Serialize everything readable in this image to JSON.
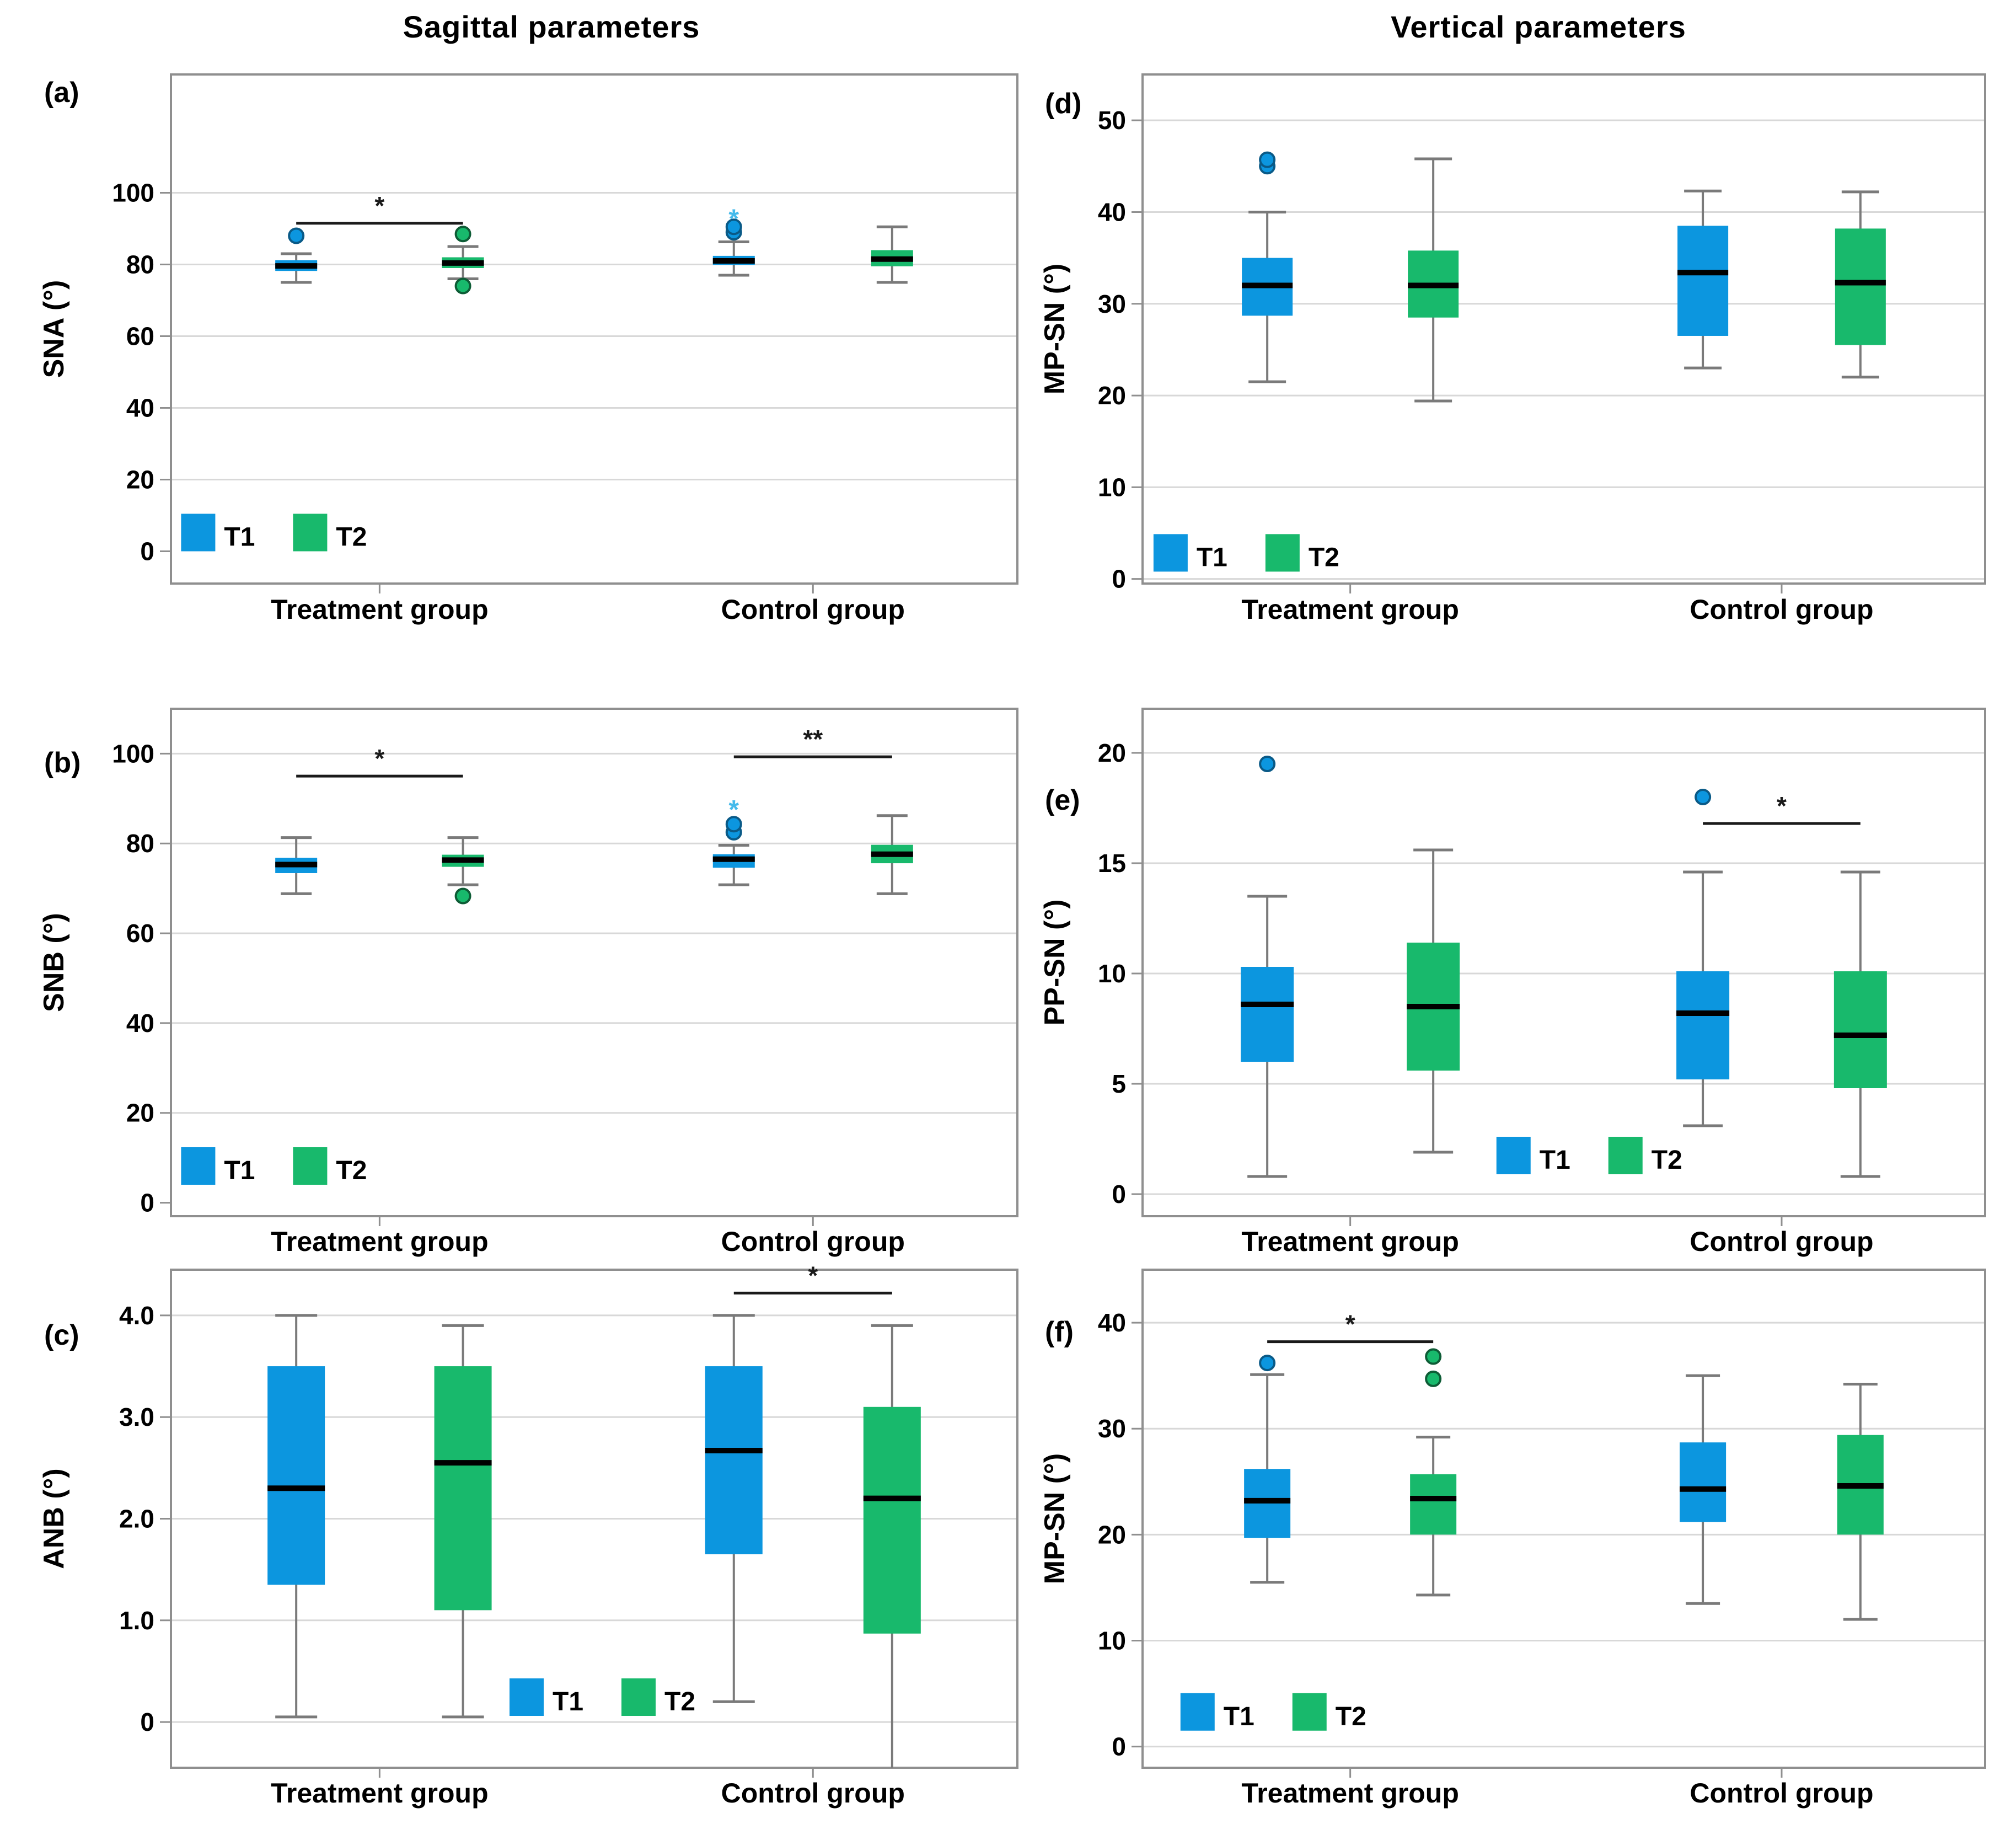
{
  "figure": {
    "column_titles": [
      "Sagittal parameters",
      "Vertical parameters"
    ],
    "groups": [
      "Treatment group",
      "Control group"
    ],
    "legend": {
      "t1_label": "T1",
      "t2_label": "T2"
    },
    "colors": {
      "t1_fill": "#0C96DF",
      "t2_fill": "#18B96C",
      "t1_outline": "#0A5A87",
      "t2_outline": "#0E5C36",
      "t1_extreme": "#45BAEB",
      "median": "#000000",
      "whisker": "#7A7A7A",
      "grid": "#D8D8D8",
      "frame": "#8F8F8F",
      "text": "#000000",
      "sig": "#1A1A1A"
    }
  },
  "chart_data": [
    {
      "id": "a",
      "type": "boxplot",
      "panel_label": "(a)",
      "ylabel": "SNA (°)",
      "yticks": [
        0,
        20,
        40,
        60,
        80,
        100
      ],
      "ytick_labels": [
        "0",
        "20",
        "40",
        "60",
        "80",
        "100"
      ],
      "ylim": [
        -9,
        133
      ],
      "grid_zero": false,
      "groups": [
        "Treatment group",
        "Control group"
      ],
      "boxes": [
        {
          "group": "Treatment group",
          "series": "T1",
          "whisker_low": 75,
          "q1": 78.2,
          "median": 79.6,
          "q3": 81.2,
          "whisker_high": 83,
          "outliers": [
            88
          ],
          "extremes": []
        },
        {
          "group": "Treatment group",
          "series": "T2",
          "whisker_low": 76,
          "q1": 79.0,
          "median": 80.4,
          "q3": 82.0,
          "whisker_high": 85,
          "outliers": [
            88.5,
            74
          ],
          "extremes": []
        },
        {
          "group": "Control group",
          "series": "T1",
          "whisker_low": 77,
          "q1": 79.9,
          "median": 81.0,
          "q3": 82.4,
          "whisker_high": 86.3,
          "outliers": [
            89,
            90.5
          ],
          "extremes": [
            92.5
          ]
        },
        {
          "group": "Control group",
          "series": "T2",
          "whisker_low": 75,
          "q1": 79.5,
          "median": 81.5,
          "q3": 84.0,
          "whisker_high": 90.5,
          "outliers": [],
          "extremes": []
        }
      ],
      "significance": [
        {
          "pair": [
            0,
            1
          ],
          "y": 91.5,
          "label": "*"
        }
      ],
      "legend_pos": {
        "x_frac": 0.012,
        "y_bottom": 0
      }
    },
    {
      "id": "b",
      "type": "boxplot",
      "panel_label": "(b)",
      "ylabel": "SNB (°)",
      "yticks": [
        0,
        20,
        40,
        60,
        80,
        100
      ],
      "ytick_labels": [
        "0",
        "20",
        "40",
        "60",
        "80",
        "100"
      ],
      "ylim": [
        -3,
        110
      ],
      "grid_zero": false,
      "groups": [
        "Treatment group",
        "Control group"
      ],
      "boxes": [
        {
          "group": "Treatment group",
          "series": "T1",
          "whisker_low": 68.8,
          "q1": 73.4,
          "median": 75.3,
          "q3": 76.8,
          "whisker_high": 81.3,
          "outliers": [],
          "extremes": []
        },
        {
          "group": "Treatment group",
          "series": "T2",
          "whisker_low": 70.8,
          "q1": 74.8,
          "median": 76.3,
          "q3": 77.5,
          "whisker_high": 81.3,
          "outliers": [
            68.3
          ],
          "extremes": []
        },
        {
          "group": "Control group",
          "series": "T1",
          "whisker_low": 70.8,
          "q1": 74.6,
          "median": 76.5,
          "q3": 77.6,
          "whisker_high": 79.6,
          "outliers": [
            82.5,
            84.3
          ],
          "extremes": [
            87.3
          ]
        },
        {
          "group": "Control group",
          "series": "T2",
          "whisker_low": 68.8,
          "q1": 75.6,
          "median": 77.6,
          "q3": 79.7,
          "whisker_high": 86.2,
          "outliers": [],
          "extremes": []
        }
      ],
      "significance": [
        {
          "pair": [
            0,
            1
          ],
          "y": 95,
          "label": "*"
        },
        {
          "pair": [
            2,
            3
          ],
          "y": 99.3,
          "label": "**"
        }
      ],
      "legend_pos": {
        "x_frac": 0.012,
        "y_bottom": 4
      }
    },
    {
      "id": "c",
      "type": "boxplot",
      "panel_label": "(c)",
      "ylabel": "ANB (°)",
      "yticks": [
        0,
        1,
        2,
        3,
        4
      ],
      "ytick_labels": [
        "0",
        "1.0",
        "2.0",
        "3.0",
        "4.0"
      ],
      "ylim": [
        -0.45,
        4.45
      ],
      "grid_zero": true,
      "groups": [
        "Treatment group",
        "Control group"
      ],
      "boxes": [
        {
          "group": "Treatment group",
          "series": "T1",
          "whisker_low": 0.05,
          "q1": 1.35,
          "median": 2.3,
          "q3": 3.5,
          "whisker_high": 4.0,
          "outliers": [],
          "extremes": []
        },
        {
          "group": "Treatment group",
          "series": "T2",
          "whisker_low": 0.05,
          "q1": 1.1,
          "median": 2.55,
          "q3": 3.5,
          "whisker_high": 3.9,
          "outliers": [],
          "extremes": []
        },
        {
          "group": "Control group",
          "series": "T1",
          "whisker_low": 0.2,
          "q1": 1.65,
          "median": 2.67,
          "q3": 3.5,
          "whisker_high": 4.0,
          "outliers": [],
          "extremes": []
        },
        {
          "group": "Control group",
          "series": "T2",
          "whisker_low": -0.6,
          "q1": 0.87,
          "median": 2.2,
          "q3": 3.1,
          "whisker_high": 3.9,
          "outliers": [],
          "extremes": []
        }
      ],
      "significance": [
        {
          "pair": [
            2,
            3
          ],
          "y": 4.22,
          "label": "*"
        }
      ],
      "legend_pos": {
        "x_frac": 0.4,
        "y_bottom": 0.06
      }
    },
    {
      "id": "d",
      "type": "boxplot",
      "panel_label": "(d)",
      "ylabel": "MP-SN (°)",
      "yticks": [
        0,
        10,
        20,
        30,
        40,
        50
      ],
      "ytick_labels": [
        "0",
        "10",
        "20",
        "30",
        "40",
        "50"
      ],
      "ylim": [
        -0.5,
        55
      ],
      "grid_zero": true,
      "groups": [
        "Treatment group",
        "Control group"
      ],
      "boxes": [
        {
          "group": "Treatment group",
          "series": "T1",
          "whisker_low": 21.5,
          "q1": 28.7,
          "median": 32.0,
          "q3": 35.0,
          "whisker_high": 40.0,
          "outliers": [
            45,
            45.7
          ],
          "extremes": []
        },
        {
          "group": "Treatment group",
          "series": "T2",
          "whisker_low": 19.4,
          "q1": 28.5,
          "median": 32.0,
          "q3": 35.8,
          "whisker_high": 45.8,
          "outliers": [],
          "extremes": []
        },
        {
          "group": "Control group",
          "series": "T1",
          "whisker_low": 23.0,
          "q1": 26.5,
          "median": 33.4,
          "q3": 38.5,
          "whisker_high": 42.3,
          "outliers": [],
          "extremes": []
        },
        {
          "group": "Control group",
          "series": "T2",
          "whisker_low": 22.0,
          "q1": 25.5,
          "median": 32.3,
          "q3": 38.2,
          "whisker_high": 42.2,
          "outliers": [],
          "extremes": []
        }
      ],
      "significance": [],
      "legend_pos": {
        "x_frac": 0.013,
        "y_bottom": 0.8
      }
    },
    {
      "id": "e",
      "type": "boxplot",
      "panel_label": "(e)",
      "ylabel": "PP-SN (°)",
      "yticks": [
        0,
        5,
        10,
        15,
        20
      ],
      "ytick_labels": [
        "0",
        "5",
        "10",
        "15",
        "20"
      ],
      "ylim": [
        -1,
        22
      ],
      "grid_zero": true,
      "groups": [
        "Treatment group",
        "Control group"
      ],
      "boxes": [
        {
          "group": "Treatment group",
          "series": "T1",
          "whisker_low": 0.8,
          "q1": 6.0,
          "median": 8.6,
          "q3": 10.3,
          "whisker_high": 13.5,
          "outliers": [
            19.5
          ],
          "extremes": []
        },
        {
          "group": "Treatment group",
          "series": "T2",
          "whisker_low": 1.9,
          "q1": 5.6,
          "median": 8.5,
          "q3": 11.4,
          "whisker_high": 15.6,
          "outliers": [],
          "extremes": []
        },
        {
          "group": "Control group",
          "series": "T1",
          "whisker_low": 3.1,
          "q1": 5.2,
          "median": 8.2,
          "q3": 10.1,
          "whisker_high": 14.6,
          "outliers": [
            18
          ],
          "extremes": []
        },
        {
          "group": "Control group",
          "series": "T2",
          "whisker_low": 0.8,
          "q1": 4.8,
          "median": 7.2,
          "q3": 10.1,
          "whisker_high": 14.6,
          "outliers": [],
          "extremes": []
        }
      ],
      "significance": [
        {
          "pair": [
            2,
            3
          ],
          "y": 16.8,
          "label": "*"
        }
      ],
      "legend_pos": {
        "x_frac": 0.42,
        "y_bottom": 0.9
      }
    },
    {
      "id": "f",
      "type": "boxplot",
      "panel_label": "(f)",
      "ylabel": "MP-SN (°)",
      "yticks": [
        0,
        10,
        20,
        30,
        40
      ],
      "ytick_labels": [
        "0",
        "10",
        "20",
        "30",
        "40"
      ],
      "ylim": [
        -2,
        45
      ],
      "grid_zero": true,
      "groups": [
        "Treatment group",
        "Control group"
      ],
      "boxes": [
        {
          "group": "Treatment group",
          "series": "T1",
          "whisker_low": 15.5,
          "q1": 19.7,
          "median": 23.2,
          "q3": 26.2,
          "whisker_high": 35.1,
          "outliers": [
            36.2
          ],
          "extremes": []
        },
        {
          "group": "Treatment group",
          "series": "T2",
          "whisker_low": 14.3,
          "q1": 20.0,
          "median": 23.4,
          "q3": 25.7,
          "whisker_high": 29.2,
          "outliers": [
            34.7,
            36.8
          ],
          "extremes": []
        },
        {
          "group": "Control group",
          "series": "T1",
          "whisker_low": 13.5,
          "q1": 21.2,
          "median": 24.3,
          "q3": 28.7,
          "whisker_high": 35.0,
          "outliers": [],
          "extremes": []
        },
        {
          "group": "Control group",
          "series": "T2",
          "whisker_low": 12.0,
          "q1": 20.0,
          "median": 24.6,
          "q3": 29.4,
          "whisker_high": 34.2,
          "outliers": [],
          "extremes": []
        }
      ],
      "significance": [
        {
          "pair": [
            0,
            1
          ],
          "y": 38.2,
          "label": "*"
        }
      ],
      "legend_pos": {
        "x_frac": 0.045,
        "y_bottom": 1.5
      }
    }
  ]
}
